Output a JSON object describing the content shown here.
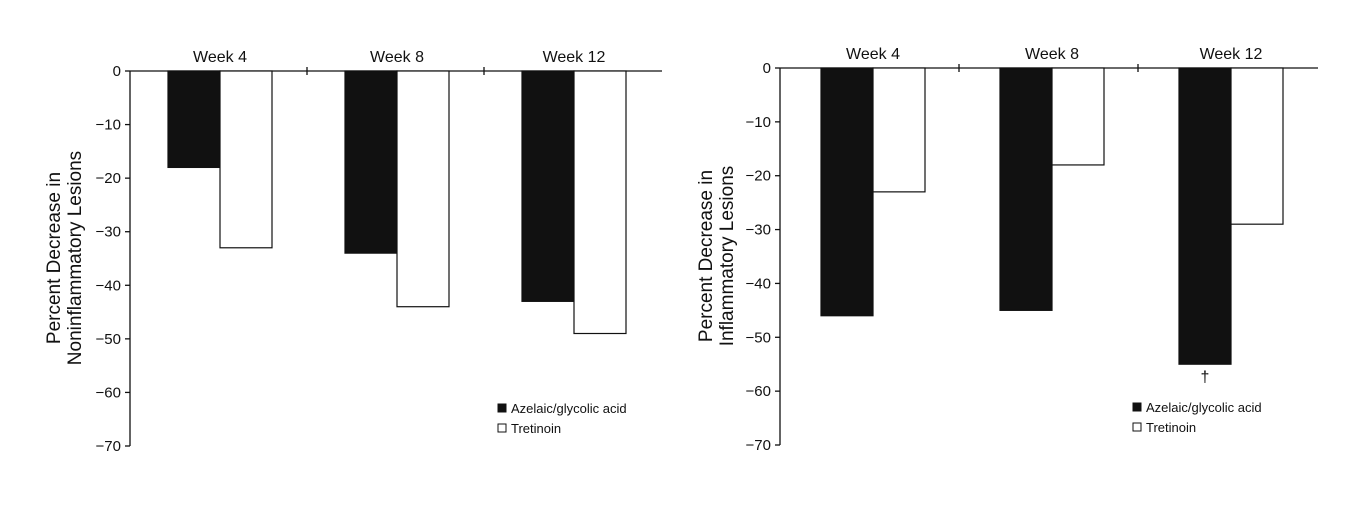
{
  "chart_data": [
    {
      "type": "bar",
      "categories": [
        "Week 4",
        "Week 8",
        "Week 12"
      ],
      "ylabel": [
        "Percent Decrease in",
        "Noninflammatory Lesions"
      ],
      "ylim": [
        -70,
        0
      ],
      "yticks": [
        "0",
        "−10",
        "−20",
        "−30",
        "−40",
        "−50",
        "−60",
        "−70"
      ],
      "legend_position": "bottom-right",
      "series": [
        {
          "name": "Azelaic/glycolic acid",
          "color": "#111111",
          "values": [
            -18,
            -34,
            -43
          ]
        },
        {
          "name": "Tretinoin",
          "color": "#ffffff",
          "values": [
            -33,
            -44,
            -49
          ]
        }
      ],
      "annotations": []
    },
    {
      "type": "bar",
      "categories": [
        "Week 4",
        "Week 8",
        "Week 12"
      ],
      "ylabel": [
        "Percent Decrease in",
        "Inflammatory Lesions"
      ],
      "ylim": [
        -70,
        0
      ],
      "yticks": [
        "0",
        "−10",
        "−20",
        "−30",
        "−40",
        "−50",
        "−60",
        "−70"
      ],
      "legend_position": "bottom-right",
      "series": [
        {
          "name": "Azelaic/glycolic acid",
          "color": "#111111",
          "values": [
            -46,
            -45,
            -55
          ]
        },
        {
          "name": "Tretinoin",
          "color": "#ffffff",
          "values": [
            -23,
            -18,
            -29
          ]
        }
      ],
      "annotations": [
        {
          "text": "†",
          "series": 0,
          "category": 2
        }
      ]
    }
  ]
}
